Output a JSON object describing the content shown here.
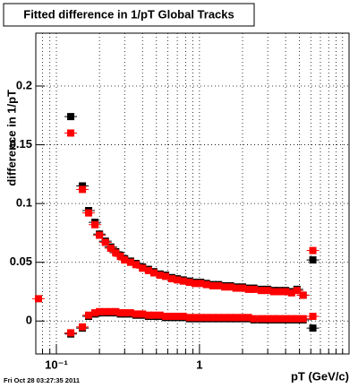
{
  "chart_data": {
    "type": "scatter",
    "title": "Fitted difference in 1/pT  Global Tracks",
    "y_label": "difference in 1/pT",
    "x_label": "pT (GeV/c)",
    "footer": "Fri Oct 28 03:27:35 2011",
    "log_x": true,
    "grid": true,
    "xlim": [
      0.0718,
      11.1
    ],
    "ylim": [
      -0.028,
      0.245
    ],
    "xticks": [
      {
        "value": 0.1,
        "label": "10⁻¹"
      },
      1
    ],
    "xminor": [
      0.08,
      0.09,
      0.2,
      0.3,
      0.4,
      0.5,
      0.6,
      0.7,
      0.8,
      0.9,
      2,
      3,
      4,
      5,
      6,
      7,
      8,
      9,
      10
    ],
    "yticks": [
      0,
      0.05,
      0.1,
      0.15,
      0.2
    ],
    "x": [
      0.075,
      0.126,
      0.152,
      0.168,
      0.186,
      0.2,
      0.22,
      0.24,
      0.26,
      0.28,
      0.3,
      0.33,
      0.36,
      0.4,
      0.44,
      0.48,
      0.53,
      0.58,
      0.64,
      0.7,
      0.77,
      0.85,
      0.93,
      1.02,
      1.12,
      1.24,
      1.36,
      1.5,
      1.65,
      1.8,
      2,
      2.2,
      2.4,
      2.7,
      3,
      3.3,
      3.6,
      4,
      4.4,
      4.8,
      5.3,
      6.2
    ],
    "series": [
      {
        "color": "#000000",
        "values": [
          null,
          0.174,
          0.115,
          0.094,
          0.084,
          0.074,
          0.068,
          0.063,
          0.059,
          0.056,
          0.053,
          0.051,
          0.049,
          0.046,
          0.044,
          0.042,
          0.04,
          0.039,
          0.037,
          0.036,
          0.035,
          0.034,
          0.033,
          0.033,
          0.032,
          0.031,
          0.031,
          0.03,
          0.03,
          0.029,
          0.029,
          0.028,
          0.028,
          0.027,
          0.027,
          0.026,
          0.026,
          0.026,
          0.025,
          0.027,
          0.022,
          0.052
        ]
      },
      {
        "color": "#000000",
        "values": [
          null,
          -0.011,
          -0.006,
          0.004,
          0.006,
          0.007,
          0.007,
          0.007,
          0.007,
          0.006,
          0.006,
          0.006,
          0.005,
          0.005,
          0.004,
          0.004,
          0.004,
          0.003,
          0.003,
          0.003,
          0.003,
          0.002,
          0.002,
          0.002,
          0.002,
          0.002,
          0.002,
          0.002,
          0.002,
          0.002,
          0.002,
          0.002,
          0.001,
          0.001,
          0.001,
          0.001,
          0.001,
          0.001,
          0.001,
          0.001,
          0.001,
          -0.006
        ]
      },
      {
        "color": "#ff0000",
        "values": [
          0.019,
          0.16,
          0.112,
          0.092,
          0.082,
          0.073,
          0.067,
          0.062,
          0.058,
          0.055,
          0.052,
          0.05,
          0.048,
          0.045,
          0.043,
          0.041,
          0.039,
          0.038,
          0.036,
          0.035,
          0.034,
          0.033,
          0.032,
          0.032,
          0.031,
          0.03,
          0.03,
          0.029,
          0.029,
          0.028,
          0.028,
          0.027,
          0.027,
          0.026,
          0.026,
          0.025,
          0.025,
          0.025,
          0.024,
          0.026,
          0.022,
          0.06
        ]
      },
      {
        "color": "#ff0000",
        "values": [
          null,
          -0.01,
          -0.005,
          0.005,
          0.007,
          0.008,
          0.008,
          0.008,
          0.008,
          0.007,
          0.007,
          0.007,
          0.006,
          0.006,
          0.005,
          0.005,
          0.005,
          0.004,
          0.004,
          0.004,
          0.004,
          0.003,
          0.003,
          0.003,
          0.003,
          0.003,
          0.003,
          0.003,
          0.003,
          0.003,
          0.003,
          0.003,
          0.002,
          0.002,
          0.002,
          0.002,
          0.002,
          0.002,
          0.002,
          0.002,
          0.002,
          0.004
        ]
      }
    ]
  }
}
